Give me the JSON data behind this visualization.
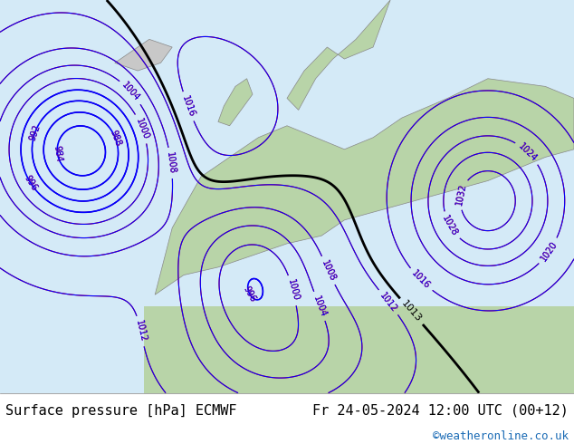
{
  "title_left": "Surface pressure [hPa] ECMWF",
  "title_right": "Fr 24-05-2024 12:00 UTC (00+12)",
  "credit": "©weatheronline.co.uk",
  "bg_color": "#e8f4e8",
  "land_color": "#c8e6c8",
  "sea_color": "#ddeeff",
  "footer_bg": "#ffffff",
  "footer_text_color": "#000000",
  "credit_color": "#1a6bb5",
  "title_fontsize": 11,
  "credit_fontsize": 9,
  "fig_width": 6.34,
  "fig_height": 4.9
}
